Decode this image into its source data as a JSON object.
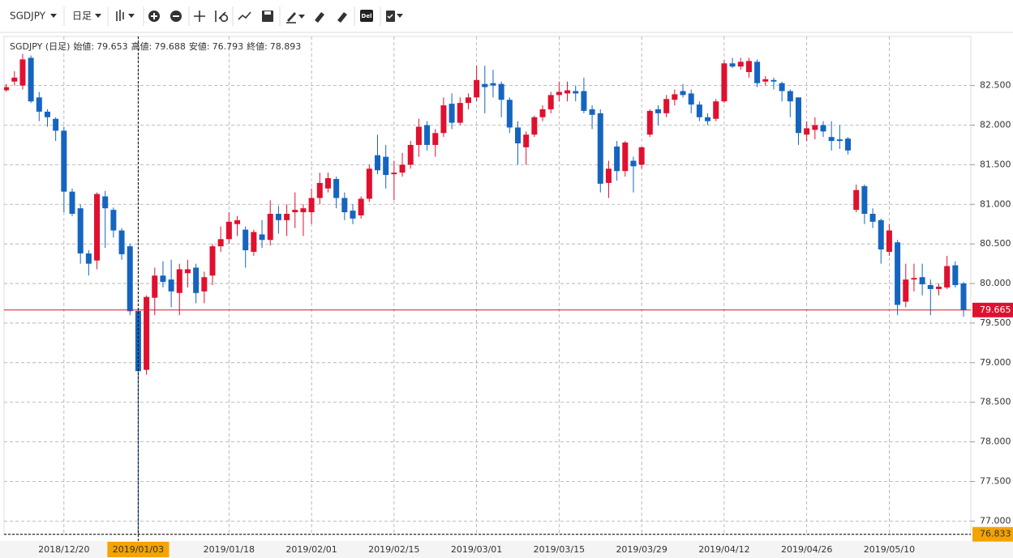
{
  "toolbar": {
    "symbol": "SGDJPY",
    "timeframe": "日足",
    "delete_label": "Del"
  },
  "chart_data": {
    "type": "candlestick",
    "info": {
      "name": "SGDJPY (日足)",
      "items": [
        {
          "label": "始値:",
          "value": 79.653
        },
        {
          "label": "高値:",
          "value": 79.688
        },
        {
          "label": "安値:",
          "value": 76.793
        },
        {
          "label": "終値:",
          "value": 78.893
        }
      ]
    },
    "categories": [
      null,
      null,
      null,
      null,
      null,
      null,
      null,
      "2018/12/20",
      null,
      null,
      null,
      null,
      null,
      null,
      null,
      null,
      "2019/01/03",
      null,
      null,
      null,
      null,
      null,
      null,
      null,
      null,
      null,
      null,
      "2019/01/18",
      null,
      null,
      null,
      null,
      null,
      null,
      null,
      null,
      null,
      "2019/02/01",
      null,
      null,
      null,
      null,
      null,
      null,
      null,
      null,
      null,
      "2019/02/15",
      null,
      null,
      null,
      null,
      null,
      null,
      null,
      null,
      null,
      "2019/03/01",
      null,
      null,
      null,
      null,
      null,
      null,
      null,
      null,
      null,
      "2019/03/15",
      null,
      null,
      null,
      null,
      null,
      null,
      null,
      null,
      null,
      "2019/03/29",
      null,
      null,
      null,
      null,
      null,
      null,
      null,
      null,
      null,
      "2019/04/12",
      null,
      null,
      null,
      null,
      null,
      null,
      null,
      null,
      null,
      "2019/04/26",
      null,
      null,
      null,
      null,
      null,
      null,
      null,
      null,
      null,
      "2019/05/10",
      null,
      null,
      null,
      null,
      null,
      null,
      null,
      null,
      null
    ],
    "open": [
      82.44,
      82.55,
      82.5,
      82.85,
      82.35,
      82.17,
      82.08,
      81.93,
      81.16,
      80.95,
      80.38,
      80.29,
      81.1,
      80.93,
      80.67,
      80.47,
      79.653,
      78.91,
      79.82,
      80.1,
      80.05,
      79.88,
      80.13,
      80.2,
      79.9,
      80.1,
      80.47,
      80.56,
      80.75,
      80.68,
      80.4,
      80.62,
      80.55,
      80.88,
      80.8,
      80.9,
      80.9,
      80.9,
      81.08,
      81.2,
      81.32,
      81.08,
      80.92,
      80.86,
      81.07,
      81.62,
      81.6,
      81.38,
      81.4,
      81.5,
      81.75,
      82.0,
      81.75,
      81.9,
      82.27,
      82.03,
      82.28,
      82.35,
      82.52,
      82.53,
      82.52,
      82.32,
      81.97,
      81.72,
      81.88,
      82.1,
      82.2,
      82.38,
      82.4,
      82.43,
      82.43,
      82.2,
      82.15,
      81.27,
      81.73,
      81.42,
      81.55,
      81.5,
      81.88,
      82.2,
      82.15,
      82.32,
      82.43,
      82.4,
      82.26,
      82.1,
      82.08,
      82.3,
      82.78,
      82.74,
      82.67,
      82.8,
      82.55,
      82.57,
      82.53,
      82.43,
      82.35,
      81.88,
      81.94,
      82.0,
      81.85,
      81.82,
      81.83,
      80.93,
      81.23,
      80.88,
      80.8,
      80.4,
      80.52,
      79.77,
      80.05,
      80.08,
      79.98,
      79.93,
      79.95,
      80.23,
      80.0
    ],
    "high": [
      82.52,
      82.68,
      82.9,
      82.88,
      82.42,
      82.2,
      82.1,
      81.98,
      81.2,
      81.0,
      80.42,
      81.15,
      81.17,
      80.96,
      80.7,
      80.5,
      79.688,
      79.85,
      80.2,
      80.28,
      80.3,
      80.25,
      80.3,
      80.25,
      80.15,
      80.5,
      80.72,
      80.9,
      80.85,
      80.72,
      80.68,
      80.8,
      81.05,
      80.98,
      81.0,
      81.15,
      81.0,
      81.2,
      81.4,
      81.4,
      81.35,
      81.15,
      81.0,
      81.1,
      81.5,
      81.88,
      81.75,
      81.55,
      81.65,
      81.8,
      82.08,
      82.05,
      81.95,
      82.35,
      82.4,
      82.35,
      82.4,
      82.75,
      82.75,
      82.7,
      82.55,
      82.35,
      82.05,
      81.92,
      82.12,
      82.25,
      82.42,
      82.55,
      82.55,
      82.5,
      82.6,
      82.25,
      82.2,
      81.55,
      81.8,
      81.8,
      81.6,
      81.73,
      82.2,
      82.25,
      82.38,
      82.45,
      82.52,
      82.45,
      82.3,
      82.15,
      82.33,
      82.82,
      82.85,
      82.85,
      82.85,
      82.83,
      82.62,
      82.6,
      82.55,
      82.45,
      82.35,
      82.05,
      82.1,
      82.05,
      82.05,
      82.0,
      81.85,
      81.25,
      81.25,
      80.95,
      80.82,
      80.75,
      80.55,
      80.25,
      80.25,
      80.25,
      80.05,
      80.0,
      80.35,
      80.28,
      80.02
    ],
    "low": [
      82.42,
      82.5,
      82.45,
      82.28,
      82.05,
      81.98,
      81.8,
      80.9,
      80.85,
      80.25,
      80.1,
      80.18,
      80.45,
      80.58,
      80.3,
      79.6,
      76.793,
      78.85,
      79.6,
      79.95,
      79.7,
      79.6,
      79.95,
      79.75,
      79.75,
      79.98,
      80.4,
      80.5,
      80.6,
      80.2,
      80.35,
      80.45,
      80.48,
      80.63,
      80.6,
      80.7,
      80.6,
      80.75,
      81.0,
      81.15,
      80.95,
      80.8,
      80.75,
      80.82,
      81.03,
      81.38,
      81.2,
      81.05,
      81.35,
      81.45,
      81.6,
      81.68,
      81.6,
      81.85,
      81.95,
      82.0,
      82.2,
      82.3,
      82.15,
      82.35,
      82.1,
      81.9,
      81.5,
      81.5,
      81.85,
      82.05,
      82.15,
      82.3,
      82.3,
      82.3,
      82.15,
      81.95,
      81.15,
      81.08,
      81.3,
      81.35,
      81.15,
      81.45,
      81.85,
      82.0,
      82.1,
      82.25,
      82.35,
      82.15,
      82.05,
      82.0,
      82.05,
      82.28,
      82.72,
      82.7,
      82.6,
      82.48,
      82.5,
      82.45,
      82.3,
      82.1,
      81.75,
      81.8,
      81.82,
      81.85,
      81.68,
      81.7,
      81.63,
      80.9,
      80.75,
      80.7,
      80.25,
      80.35,
      79.6,
      79.7,
      79.9,
      79.85,
      79.6,
      79.85,
      79.93,
      79.95,
      79.58
    ],
    "close": [
      82.48,
      82.6,
      82.83,
      82.3,
      82.17,
      82.1,
      81.93,
      81.16,
      80.88,
      80.38,
      80.25,
      81.13,
      80.95,
      80.67,
      80.37,
      79.65,
      78.893,
      79.83,
      80.1,
      80.02,
      79.9,
      80.18,
      80.18,
      79.88,
      80.08,
      80.47,
      80.56,
      80.78,
      80.8,
      80.42,
      80.65,
      80.55,
      80.88,
      80.8,
      80.88,
      80.93,
      80.95,
      81.08,
      81.27,
      81.33,
      81.08,
      80.9,
      80.82,
      81.07,
      81.45,
      81.43,
      81.37,
      81.4,
      81.5,
      81.75,
      81.98,
      81.75,
      81.9,
      82.25,
      82.03,
      82.28,
      82.35,
      82.57,
      82.48,
      82.5,
      82.32,
      81.97,
      81.77,
      81.88,
      82.1,
      82.2,
      82.38,
      82.42,
      82.44,
      82.4,
      82.18,
      82.13,
      81.26,
      81.45,
      81.42,
      81.78,
      81.48,
      81.72,
      82.18,
      82.15,
      82.33,
      82.39,
      82.38,
      82.26,
      82.1,
      82.05,
      82.3,
      82.78,
      82.74,
      82.8,
      82.81,
      82.53,
      82.58,
      82.55,
      82.43,
      82.3,
      81.9,
      81.96,
      82.0,
      81.92,
      81.8,
      81.8,
      81.68,
      81.18,
      80.88,
      80.78,
      80.43,
      80.67,
      79.73,
      80.05,
      80.07,
      79.99,
      79.93,
      79.96,
      80.22,
      79.98,
      79.665
    ],
    "up_color": "#e0102f",
    "down_color": "#1565c0",
    "ylim": [
      76.83,
      83.12
    ],
    "yticks": [
      {
        "value": 77.0,
        "label": "77.000"
      },
      {
        "value": 77.5,
        "label": "77.500"
      },
      {
        "value": 78.0,
        "label": "78.000"
      },
      {
        "value": 78.5,
        "label": "78.500"
      },
      {
        "value": 79.0,
        "label": "79.000"
      },
      {
        "value": 79.5,
        "label": "79.500"
      },
      {
        "value": 80.0,
        "label": "80.000"
      },
      {
        "value": 80.5,
        "label": "80.500"
      },
      {
        "value": 81.0,
        "label": "81.000"
      },
      {
        "value": 81.5,
        "label": "81.500"
      },
      {
        "value": 82.0,
        "label": "82.000"
      },
      {
        "value": 82.5,
        "label": "82.500"
      }
    ],
    "grid": true,
    "last_price": 79.665,
    "last_price_color": "#e0102f",
    "crosshair": {
      "category": "2019/01/03",
      "price": 76.833,
      "color": "#f5a300"
    }
  }
}
